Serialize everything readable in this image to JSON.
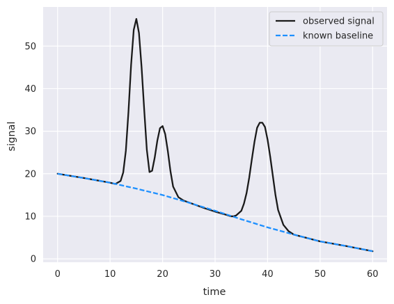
{
  "chart_data": {
    "type": "line",
    "title": "",
    "xlabel": "time",
    "ylabel": "signal",
    "xlim": [
      -2.75,
      62.75
    ],
    "ylim": [
      -0.8,
      59.2
    ],
    "xticks": [
      0,
      10,
      20,
      30,
      40,
      50,
      60
    ],
    "yticks": [
      0,
      10,
      20,
      30,
      40,
      50
    ],
    "grid": true,
    "legend_position": "top-right",
    "colors": {
      "background": "#eaeaf2",
      "grid": "#ffffff",
      "observed": "#1a1a1a",
      "baseline": "#1e90ff",
      "text": "#262626"
    },
    "series": [
      {
        "name": "observed signal",
        "style": "solid",
        "x": [
          0,
          5,
          10,
          11,
          12,
          12.5,
          13,
          13.5,
          14,
          14.5,
          15,
          15.5,
          16,
          16.5,
          17,
          17.5,
          18,
          18.5,
          19,
          19.5,
          20,
          20.5,
          21,
          21.5,
          22,
          23,
          24,
          26,
          28,
          30,
          32,
          33,
          33.5,
          34,
          35,
          35.5,
          36,
          36.5,
          37,
          37.5,
          38,
          38.5,
          39,
          39.5,
          40,
          40.5,
          41,
          41.5,
          42,
          43,
          44,
          45,
          50,
          55,
          60
        ],
        "y": [
          20,
          19.0,
          17.9,
          17.6,
          18.3,
          20.3,
          25.4,
          34.6,
          45.6,
          53.8,
          56.4,
          53.1,
          45.0,
          35.0,
          25.6,
          20.4,
          20.7,
          23.8,
          27.8,
          30.7,
          31.2,
          29.3,
          25.3,
          20.6,
          17.0,
          14.5,
          13.7,
          12.8,
          11.9,
          11.1,
          10.4,
          10.0,
          10.0,
          10.2,
          11.3,
          13.0,
          15.5,
          19.1,
          23.4,
          27.5,
          30.8,
          32.0,
          32.0,
          31.0,
          28.0,
          24.0,
          19.5,
          15.0,
          11.5,
          8.0,
          6.5,
          5.7,
          4.1,
          3.0,
          1.8
        ]
      },
      {
        "name": "known baseline",
        "style": "dashed",
        "x": [
          0,
          5,
          10,
          15,
          20,
          25,
          30,
          35,
          40,
          45,
          50,
          55,
          60
        ],
        "y": [
          20,
          19.0,
          17.9,
          16.5,
          15.0,
          13.2,
          11.3,
          9.3,
          7.4,
          5.7,
          4.1,
          3.0,
          1.8
        ]
      }
    ]
  }
}
